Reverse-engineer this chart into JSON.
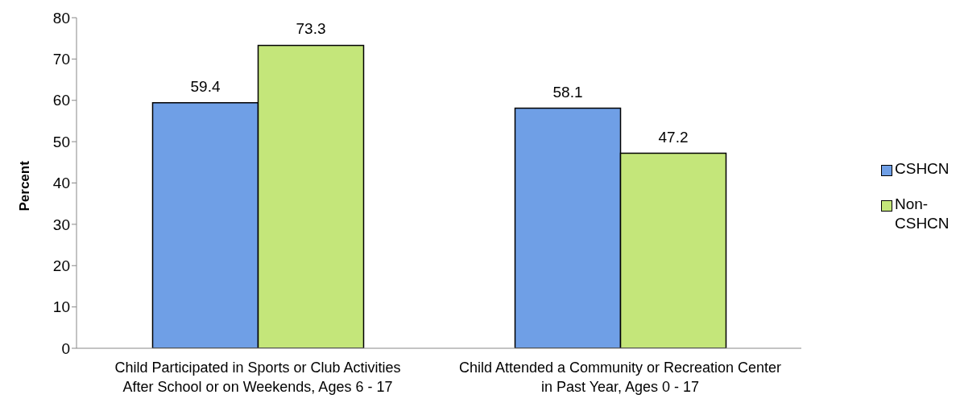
{
  "chart_data": {
    "type": "bar",
    "ylabel": "Percent",
    "categories": [
      "Child Participated in Sports or Club Activities After School or on Weekends, Ages 6 - 17",
      "Child Attended a Community or Recreation Center in Past Year, Ages 0 - 17"
    ],
    "series": [
      {
        "name": "CSHCN",
        "color": "#6f9fe6",
        "values": [
          59.4,
          58.1
        ]
      },
      {
        "name": "Non-CSHCN",
        "color": "#c4e67a",
        "values": [
          73.3,
          47.2
        ]
      }
    ],
    "ylim": [
      0,
      80
    ],
    "yticks": [
      0,
      10,
      20,
      30,
      40,
      50,
      60,
      70,
      80
    ],
    "grid": false,
    "legend": "right",
    "data_labels": true
  }
}
